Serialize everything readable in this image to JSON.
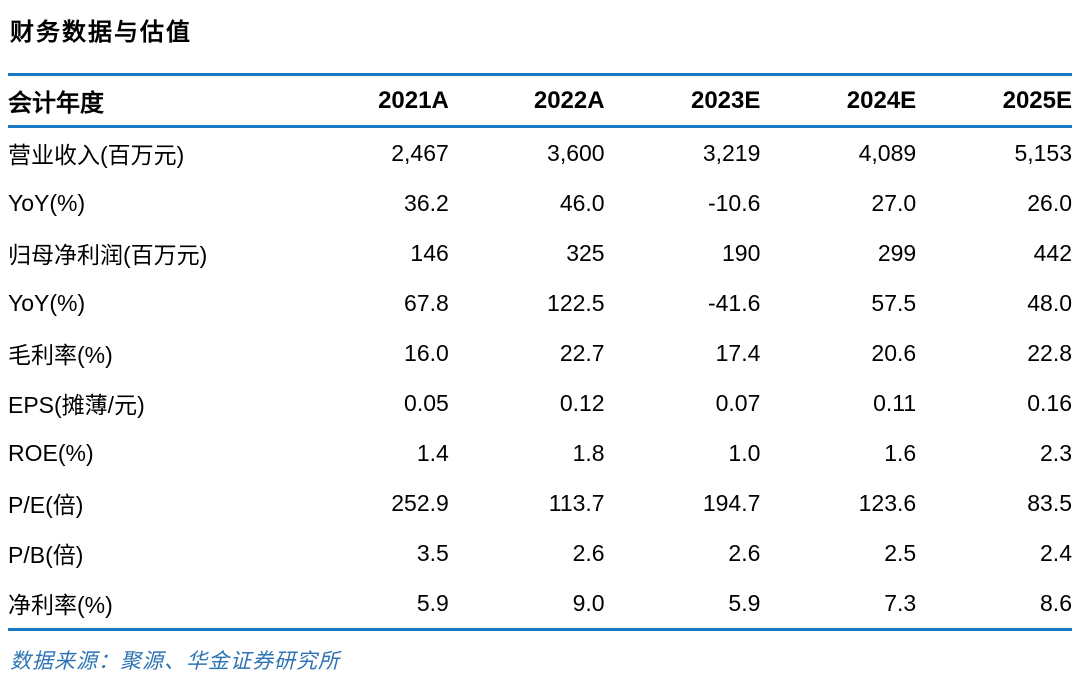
{
  "title": "财务数据与估值",
  "colors": {
    "rule_blue": "#1777c4",
    "source_text_blue": "#2e74b5",
    "body_text": "#000000"
  },
  "table": {
    "header": {
      "label": "会计年度",
      "years": [
        "2021A",
        "2022A",
        "2023E",
        "2024E",
        "2025E"
      ]
    },
    "rows": [
      {
        "label": "营业收入(百万元)",
        "values": [
          "2,467",
          "3,600",
          "3,219",
          "4,089",
          "5,153"
        ]
      },
      {
        "label": "YoY(%)",
        "values": [
          "36.2",
          "46.0",
          "-10.6",
          "27.0",
          "26.0"
        ]
      },
      {
        "label": "归母净利润(百万元)",
        "values": [
          "146",
          "325",
          "190",
          "299",
          "442"
        ]
      },
      {
        "label": "YoY(%)",
        "values": [
          "67.8",
          "122.5",
          "-41.6",
          "57.5",
          "48.0"
        ]
      },
      {
        "label": "毛利率(%)",
        "values": [
          "16.0",
          "22.7",
          "17.4",
          "20.6",
          "22.8"
        ]
      },
      {
        "label": "EPS(摊薄/元)",
        "values": [
          "0.05",
          "0.12",
          "0.07",
          "0.11",
          "0.16"
        ]
      },
      {
        "label": "ROE(%)",
        "values": [
          "1.4",
          "1.8",
          "1.0",
          "1.6",
          "2.3"
        ]
      },
      {
        "label": "P/E(倍)",
        "values": [
          "252.9",
          "113.7",
          "194.7",
          "123.6",
          "83.5"
        ]
      },
      {
        "label": "P/B(倍)",
        "values": [
          "3.5",
          "2.6",
          "2.6",
          "2.5",
          "2.4"
        ]
      },
      {
        "label": "净利率(%)",
        "values": [
          "5.9",
          "9.0",
          "5.9",
          "7.3",
          "8.6"
        ]
      }
    ]
  },
  "footer": {
    "source": "数据来源：聚源、华金证券研究所"
  }
}
